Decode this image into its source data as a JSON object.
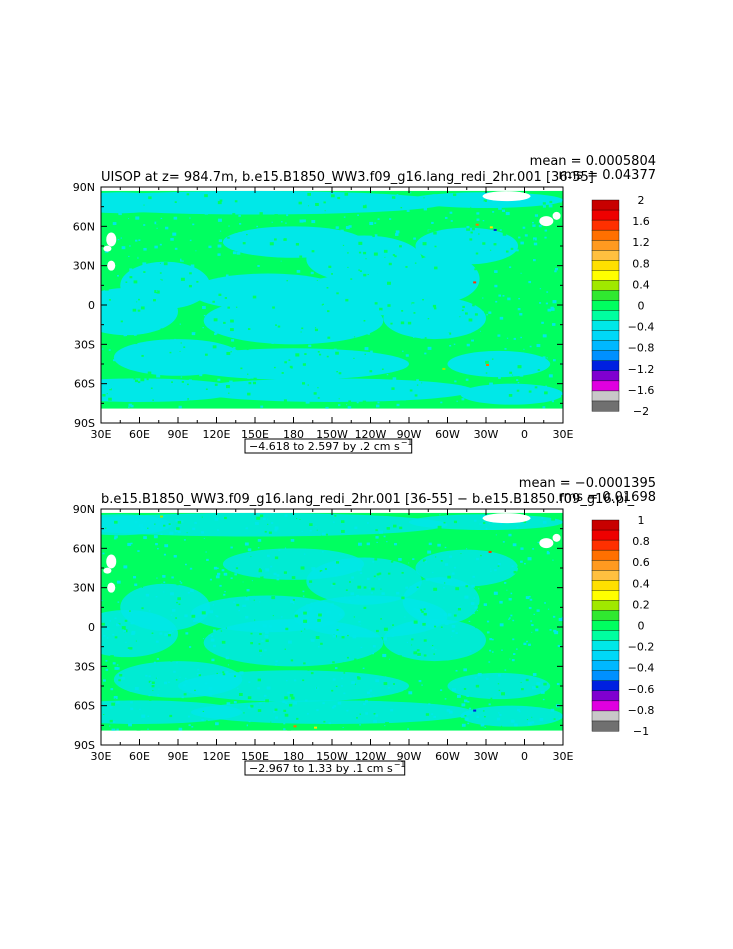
{
  "colors": {
    "ocean_cyan": "#00e8e8",
    "ocean_green": "#00ff60",
    "land_white": "#ffffff"
  },
  "chart_data": [
    {
      "type": "heatmap",
      "title": "UISOP at z= 984.7m, b.e15.B1850_WW3.f09_g16.lang_redi_2hr.001 [36-55]",
      "mean_text": "mean = 0.0005804",
      "rms_text": "rms = 0.04377",
      "range_text": "−4.618 to 2.597 by .2 cm s",
      "range_sup": "−1",
      "x_ticks": [
        "30E",
        "60E",
        "90E",
        "120E",
        "150E",
        "180",
        "150W",
        "120W",
        "90W",
        "60W",
        "30W",
        "0",
        "30E"
      ],
      "y_ticks": [
        "90N",
        "60N",
        "30N",
        "0",
        "30S",
        "60S",
        "90S"
      ],
      "colorbar": {
        "labels": [
          "2",
          "1.6",
          "1.2",
          "0.8",
          "0.4",
          "0",
          "−0.4",
          "−0.8",
          "−1.2",
          "−1.6",
          "−2"
        ],
        "colors": [
          "#c80000",
          "#ee0000",
          "#ff3000",
          "#ff7000",
          "#ff9a20",
          "#ffc040",
          "#ffe000",
          "#ffff00",
          "#a0e800",
          "#30e830",
          "#00ff60",
          "#00ffa0",
          "#00e8e8",
          "#00d8f8",
          "#00b8ff",
          "#0090ff",
          "#0020e0",
          "#8000d0",
          "#e000e0",
          "#c8c8c8",
          "#707070"
        ]
      }
    },
    {
      "type": "heatmap",
      "title": "b.e15.B1850_WW3.f09_g16.lang_redi_2hr.001 [36-55] − b.e15.B1850.f09_g16.pi_",
      "mean_text": "mean = −0.0001395",
      "rms_text": "rms = 0.01698",
      "range_text": "−2.967 to 1.33 by .1 cm s",
      "range_sup": "−1",
      "x_ticks": [
        "30E",
        "60E",
        "90E",
        "120E",
        "150E",
        "180",
        "150W",
        "120W",
        "90W",
        "60W",
        "30W",
        "0",
        "30E"
      ],
      "y_ticks": [
        "90N",
        "60N",
        "30N",
        "0",
        "30S",
        "60S",
        "90S"
      ],
      "colorbar": {
        "labels": [
          "1",
          "0.8",
          "0.6",
          "0.4",
          "0.2",
          "0",
          "−0.2",
          "−0.4",
          "−0.6",
          "−0.8",
          "−1"
        ],
        "colors": [
          "#c80000",
          "#ee0000",
          "#ff3000",
          "#ff7000",
          "#ff9a20",
          "#ffc040",
          "#ffe000",
          "#ffff00",
          "#a0e800",
          "#30e830",
          "#00ff60",
          "#00ffa0",
          "#00e8e8",
          "#00d8f8",
          "#00b8ff",
          "#0090ff",
          "#0020e0",
          "#8000d0",
          "#e000e0",
          "#c8c8c8",
          "#707070"
        ]
      }
    }
  ]
}
